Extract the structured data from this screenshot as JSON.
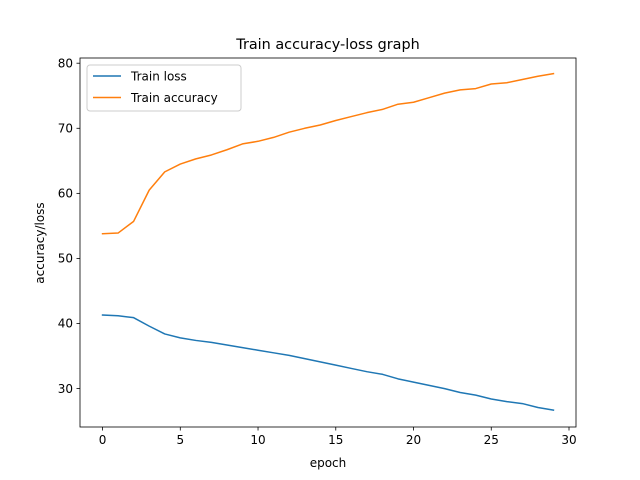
{
  "chart_data": {
    "type": "line",
    "title": "Train accuracy-loss graph",
    "xlabel": "epoch",
    "ylabel": "accuracy/loss",
    "xlim": [
      -1.45,
      30.45
    ],
    "ylim": [
      24.1,
      80.8
    ],
    "xticks": [
      0,
      5,
      10,
      15,
      20,
      25,
      30
    ],
    "yticks": [
      30,
      40,
      50,
      60,
      70,
      80
    ],
    "grid": false,
    "legend_position": "top-left",
    "x": [
      0,
      1,
      2,
      3,
      4,
      5,
      6,
      7,
      8,
      9,
      10,
      11,
      12,
      13,
      14,
      15,
      16,
      17,
      18,
      19,
      20,
      21,
      22,
      23,
      24,
      25,
      26,
      27,
      28,
      29
    ],
    "series": [
      {
        "name": "Train loss",
        "color": "#1f77b4",
        "values": [
          41.3,
          41.2,
          40.9,
          39.6,
          38.4,
          37.8,
          37.4,
          37.1,
          36.7,
          36.3,
          35.9,
          35.5,
          35.1,
          34.6,
          34.1,
          33.6,
          33.1,
          32.6,
          32.2,
          31.5,
          31.0,
          30.5,
          30.0,
          29.4,
          29.0,
          28.4,
          28.0,
          27.7,
          27.1,
          26.7
        ]
      },
      {
        "name": "Train accuracy",
        "color": "#ff7f0e",
        "values": [
          53.8,
          53.9,
          55.7,
          60.5,
          63.3,
          64.5,
          65.3,
          65.9,
          66.7,
          67.6,
          68.0,
          68.6,
          69.4,
          70.0,
          70.5,
          71.2,
          71.8,
          72.4,
          72.9,
          73.7,
          74.0,
          74.7,
          75.4,
          75.9,
          76.1,
          76.8,
          77.0,
          77.5,
          78.0,
          78.4
        ]
      }
    ]
  }
}
